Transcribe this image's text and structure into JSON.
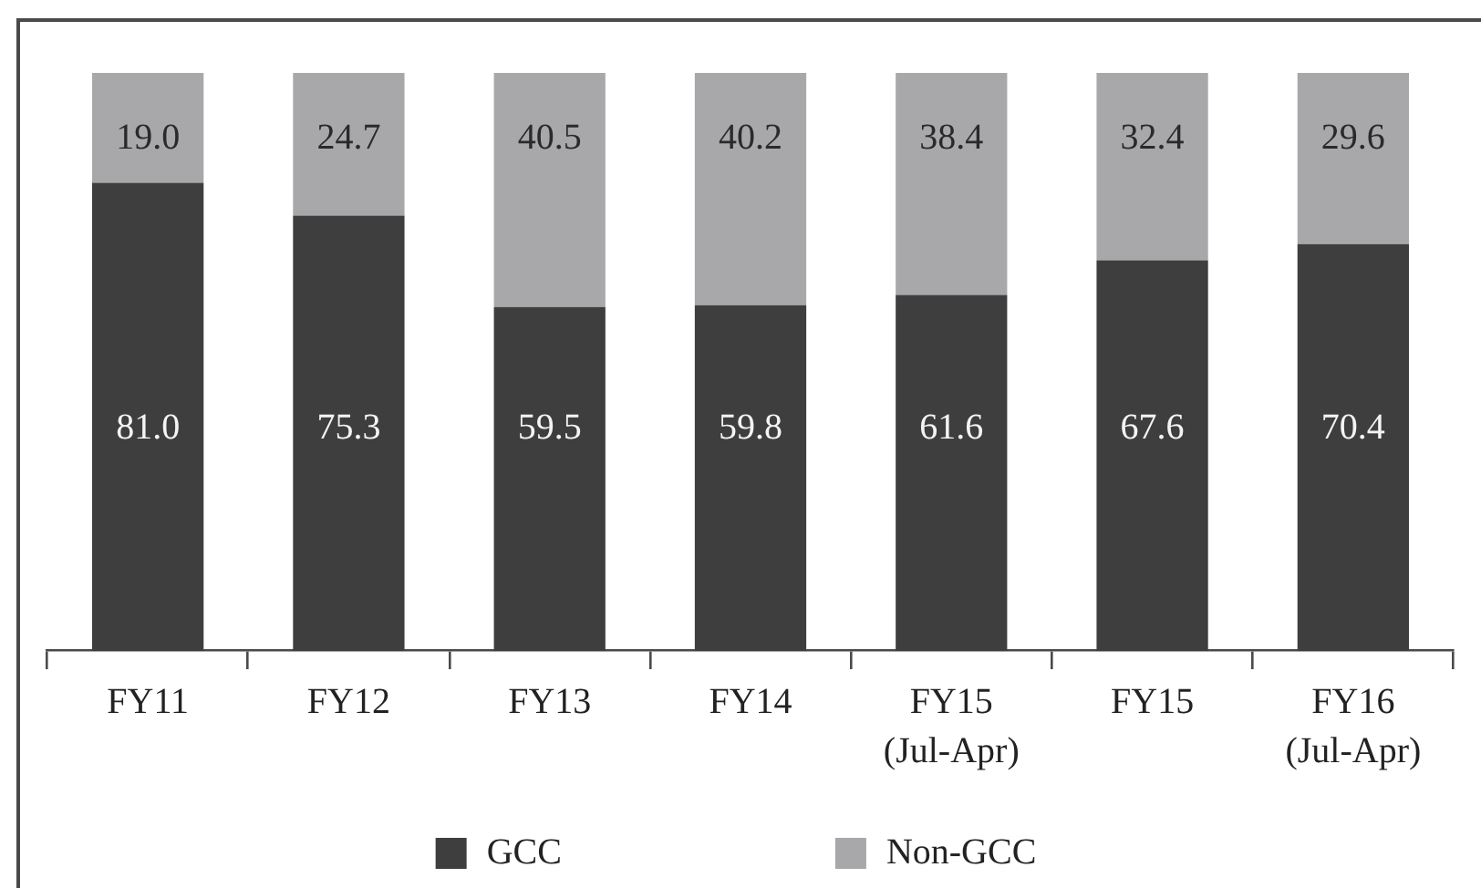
{
  "chart_data": {
    "type": "bar",
    "stacked": true,
    "categories": [
      "FY11",
      "FY12",
      "FY13",
      "FY14",
      "FY15 (Jul-Apr)",
      "FY15",
      "FY16 (Jul-Apr)"
    ],
    "series": [
      {
        "name": "GCC",
        "color": "#3e3e3e",
        "values": [
          81.0,
          75.3,
          59.5,
          59.8,
          61.6,
          67.6,
          70.4
        ],
        "value_labels": [
          "81.0",
          "75.3",
          "59.5",
          "59.8",
          "61.6",
          "67.6",
          "70.4"
        ]
      },
      {
        "name": "Non-GCC",
        "color": "#a8a8ab",
        "values": [
          19.0,
          24.7,
          40.5,
          40.2,
          38.4,
          32.4,
          29.6
        ],
        "value_labels": [
          "19.0",
          "24.7",
          "40.5",
          "40.2",
          "38.4",
          "32.4",
          "29.6"
        ]
      }
    ],
    "legend": "bottom"
  }
}
